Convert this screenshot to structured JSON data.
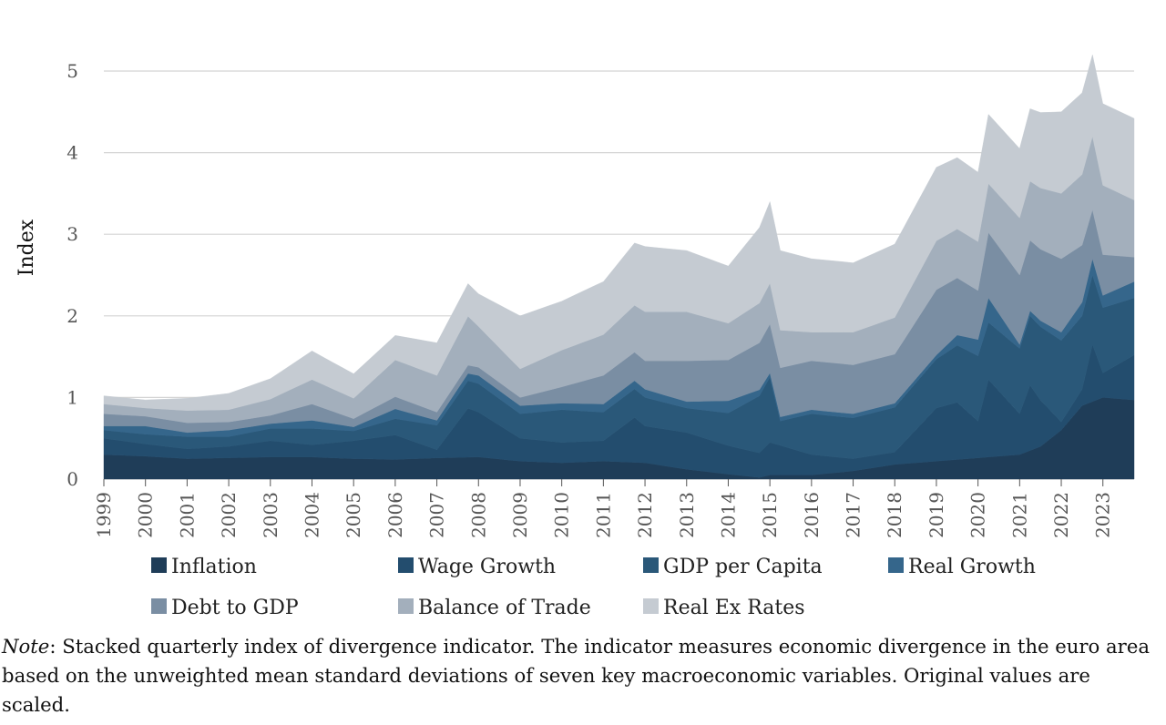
{
  "note": {
    "label": "Note",
    "text": ": Stacked quarterly index of divergence indicator. The indicator measures economic divergence in the euro area based on the unweighted mean standard deviations of seven key macroeconomic variables. Original values are scaled."
  },
  "chart_data": {
    "type": "area",
    "stacked": true,
    "ylabel": "Index",
    "xlabel": "",
    "title": "",
    "ylim": [
      0,
      5.3
    ],
    "yticks": [
      0,
      1,
      2,
      3,
      4,
      5
    ],
    "xticks": [
      "1999",
      "2000",
      "2001",
      "2002",
      "2003",
      "2004",
      "2005",
      "2006",
      "2007",
      "2008",
      "2009",
      "2010",
      "2011",
      "2012",
      "2013",
      "2014",
      "2015",
      "2016",
      "2017",
      "2018",
      "2019",
      "2020",
      "2021",
      "2022",
      "2023"
    ],
    "x_start_year": 1999,
    "frequency": "quarterly",
    "grid": "horizontal",
    "legend_position": "bottom",
    "series": [
      {
        "name": "Inflation",
        "color": "#1f3d58",
        "anchors": [
          [
            1999.0,
            0.3
          ],
          [
            2000.0,
            0.28
          ],
          [
            2001.0,
            0.25
          ],
          [
            2002.0,
            0.26
          ],
          [
            2003.0,
            0.27
          ],
          [
            2004.0,
            0.27
          ],
          [
            2005.0,
            0.25
          ],
          [
            2006.0,
            0.24
          ],
          [
            2007.0,
            0.26
          ],
          [
            2008.0,
            0.27
          ],
          [
            2009.0,
            0.22
          ],
          [
            2010.0,
            0.2
          ],
          [
            2011.0,
            0.22
          ],
          [
            2012.0,
            0.2
          ],
          [
            2013.0,
            0.12
          ],
          [
            2014.0,
            0.06
          ],
          [
            2014.75,
            0.02
          ],
          [
            2015.0,
            0.05
          ],
          [
            2016.0,
            0.05
          ],
          [
            2017.0,
            0.1
          ],
          [
            2018.0,
            0.18
          ],
          [
            2019.0,
            0.22
          ],
          [
            2020.0,
            0.26
          ],
          [
            2021.0,
            0.3
          ],
          [
            2021.5,
            0.4
          ],
          [
            2022.0,
            0.6
          ],
          [
            2022.5,
            0.9
          ],
          [
            2023.0,
            1.0
          ],
          [
            2023.75,
            0.97
          ]
        ]
      },
      {
        "name": "Wage Growth",
        "color": "#234d6e",
        "anchors": [
          [
            1999.0,
            0.2
          ],
          [
            2000.0,
            0.15
          ],
          [
            2001.0,
            0.12
          ],
          [
            2002.0,
            0.14
          ],
          [
            2003.0,
            0.2
          ],
          [
            2004.0,
            0.15
          ],
          [
            2005.0,
            0.22
          ],
          [
            2006.0,
            0.3
          ],
          [
            2007.0,
            0.1
          ],
          [
            2007.75,
            0.6
          ],
          [
            2008.0,
            0.55
          ],
          [
            2009.0,
            0.28
          ],
          [
            2010.0,
            0.25
          ],
          [
            2011.0,
            0.25
          ],
          [
            2011.75,
            0.55
          ],
          [
            2012.0,
            0.45
          ],
          [
            2013.0,
            0.45
          ],
          [
            2014.0,
            0.35
          ],
          [
            2014.75,
            0.3
          ],
          [
            2015.0,
            0.4
          ],
          [
            2016.0,
            0.25
          ],
          [
            2017.0,
            0.15
          ],
          [
            2018.0,
            0.15
          ],
          [
            2019.0,
            0.65
          ],
          [
            2019.5,
            0.7
          ],
          [
            2020.0,
            0.45
          ],
          [
            2020.25,
            0.95
          ],
          [
            2021.0,
            0.5
          ],
          [
            2021.25,
            0.8
          ],
          [
            2022.0,
            0.1
          ],
          [
            2022.5,
            0.2
          ],
          [
            2022.75,
            0.7
          ],
          [
            2023.0,
            0.3
          ],
          [
            2023.75,
            0.55
          ]
        ]
      },
      {
        "name": "GDP per Capita",
        "color": "#2a5879",
        "anchors": [
          [
            1999.0,
            0.1
          ],
          [
            2000.0,
            0.12
          ],
          [
            2001.0,
            0.15
          ],
          [
            2002.0,
            0.12
          ],
          [
            2003.0,
            0.15
          ],
          [
            2004.0,
            0.2
          ],
          [
            2005.0,
            0.12
          ],
          [
            2006.0,
            0.2
          ],
          [
            2007.0,
            0.3
          ],
          [
            2008.0,
            0.35
          ],
          [
            2009.0,
            0.3
          ],
          [
            2010.0,
            0.4
          ],
          [
            2011.0,
            0.35
          ],
          [
            2012.0,
            0.35
          ],
          [
            2013.0,
            0.3
          ],
          [
            2014.0,
            0.4
          ],
          [
            2015.0,
            0.8
          ],
          [
            2015.25,
            0.3
          ],
          [
            2016.0,
            0.5
          ],
          [
            2017.0,
            0.5
          ],
          [
            2018.0,
            0.55
          ],
          [
            2019.0,
            0.6
          ],
          [
            2020.0,
            0.8
          ],
          [
            2020.25,
            0.7
          ],
          [
            2021.0,
            0.8
          ],
          [
            2022.0,
            1.0
          ],
          [
            2022.75,
            0.85
          ],
          [
            2023.0,
            0.8
          ],
          [
            2023.75,
            0.7
          ]
        ]
      },
      {
        "name": "Real Growth",
        "color": "#35668b",
        "anchors": [
          [
            1999.0,
            0.05
          ],
          [
            2000.0,
            0.1
          ],
          [
            2001.0,
            0.05
          ],
          [
            2002.0,
            0.08
          ],
          [
            2003.0,
            0.06
          ],
          [
            2004.0,
            0.1
          ],
          [
            2005.0,
            0.05
          ],
          [
            2006.0,
            0.12
          ],
          [
            2007.0,
            0.06
          ],
          [
            2008.0,
            0.1
          ],
          [
            2009.0,
            0.1
          ],
          [
            2010.0,
            0.08
          ],
          [
            2011.0,
            0.1
          ],
          [
            2012.0,
            0.1
          ],
          [
            2013.0,
            0.08
          ],
          [
            2014.0,
            0.15
          ],
          [
            2015.0,
            0.05
          ],
          [
            2016.0,
            0.05
          ],
          [
            2017.0,
            0.05
          ],
          [
            2018.0,
            0.05
          ],
          [
            2019.0,
            0.05
          ],
          [
            2020.0,
            0.2
          ],
          [
            2020.25,
            0.3
          ],
          [
            2021.0,
            0.05
          ],
          [
            2022.0,
            0.1
          ],
          [
            2022.75,
            0.2
          ],
          [
            2023.0,
            0.15
          ],
          [
            2023.75,
            0.2
          ]
        ]
      },
      {
        "name": "Debt to GDP",
        "color": "#7a8ea3",
        "anchors": [
          [
            1999.0,
            0.15
          ],
          [
            2000.0,
            0.12
          ],
          [
            2001.0,
            0.12
          ],
          [
            2002.0,
            0.1
          ],
          [
            2003.0,
            0.1
          ],
          [
            2004.0,
            0.2
          ],
          [
            2005.0,
            0.1
          ],
          [
            2006.0,
            0.15
          ],
          [
            2007.0,
            0.1
          ],
          [
            2008.0,
            0.1
          ],
          [
            2009.0,
            0.1
          ],
          [
            2010.0,
            0.2
          ],
          [
            2011.0,
            0.35
          ],
          [
            2012.0,
            0.35
          ],
          [
            2013.0,
            0.5
          ],
          [
            2014.0,
            0.5
          ],
          [
            2015.0,
            0.6
          ],
          [
            2016.0,
            0.6
          ],
          [
            2017.0,
            0.6
          ],
          [
            2018.0,
            0.6
          ],
          [
            2019.0,
            0.8
          ],
          [
            2020.0,
            0.6
          ],
          [
            2020.25,
            0.8
          ],
          [
            2021.0,
            0.85
          ],
          [
            2022.0,
            0.9
          ],
          [
            2022.75,
            0.6
          ],
          [
            2023.0,
            0.5
          ],
          [
            2023.75,
            0.3
          ]
        ]
      },
      {
        "name": "Balance of Trade",
        "color": "#a3afbc",
        "anchors": [
          [
            1999.0,
            0.12
          ],
          [
            2000.0,
            0.1
          ],
          [
            2001.0,
            0.15
          ],
          [
            2002.0,
            0.15
          ],
          [
            2003.0,
            0.2
          ],
          [
            2004.0,
            0.3
          ],
          [
            2005.0,
            0.25
          ],
          [
            2006.0,
            0.45
          ],
          [
            2007.0,
            0.45
          ],
          [
            2007.75,
            0.6
          ],
          [
            2008.0,
            0.5
          ],
          [
            2009.0,
            0.35
          ],
          [
            2010.0,
            0.45
          ],
          [
            2011.0,
            0.5
          ],
          [
            2012.0,
            0.6
          ],
          [
            2013.0,
            0.6
          ],
          [
            2014.0,
            0.45
          ],
          [
            2015.0,
            0.5
          ],
          [
            2016.0,
            0.35
          ],
          [
            2017.0,
            0.4
          ],
          [
            2018.0,
            0.45
          ],
          [
            2019.0,
            0.6
          ],
          [
            2020.0,
            0.6
          ],
          [
            2020.25,
            0.6
          ],
          [
            2021.0,
            0.7
          ],
          [
            2022.0,
            0.8
          ],
          [
            2022.75,
            0.9
          ],
          [
            2023.0,
            0.85
          ],
          [
            2023.75,
            0.7
          ]
        ]
      },
      {
        "name": "Real Ex Rates",
        "color": "#c5cbd2",
        "anchors": [
          [
            1999.0,
            0.1
          ],
          [
            2000.0,
            0.1
          ],
          [
            2001.0,
            0.15
          ],
          [
            2002.0,
            0.2
          ],
          [
            2003.0,
            0.25
          ],
          [
            2004.0,
            0.35
          ],
          [
            2005.0,
            0.3
          ],
          [
            2006.0,
            0.3
          ],
          [
            2007.0,
            0.4
          ],
          [
            2008.0,
            0.4
          ],
          [
            2009.0,
            0.65
          ],
          [
            2010.0,
            0.6
          ],
          [
            2011.0,
            0.65
          ],
          [
            2012.0,
            0.8
          ],
          [
            2013.0,
            0.75
          ],
          [
            2014.0,
            0.7
          ],
          [
            2015.0,
            1.0
          ],
          [
            2016.0,
            0.9
          ],
          [
            2017.0,
            0.85
          ],
          [
            2018.0,
            0.9
          ],
          [
            2019.0,
            0.9
          ],
          [
            2020.0,
            0.85
          ],
          [
            2020.25,
            0.85
          ],
          [
            2021.0,
            0.85
          ],
          [
            2022.0,
            1.0
          ],
          [
            2022.75,
            1.0
          ],
          [
            2023.0,
            1.0
          ],
          [
            2023.75,
            1.0
          ]
        ]
      }
    ]
  }
}
